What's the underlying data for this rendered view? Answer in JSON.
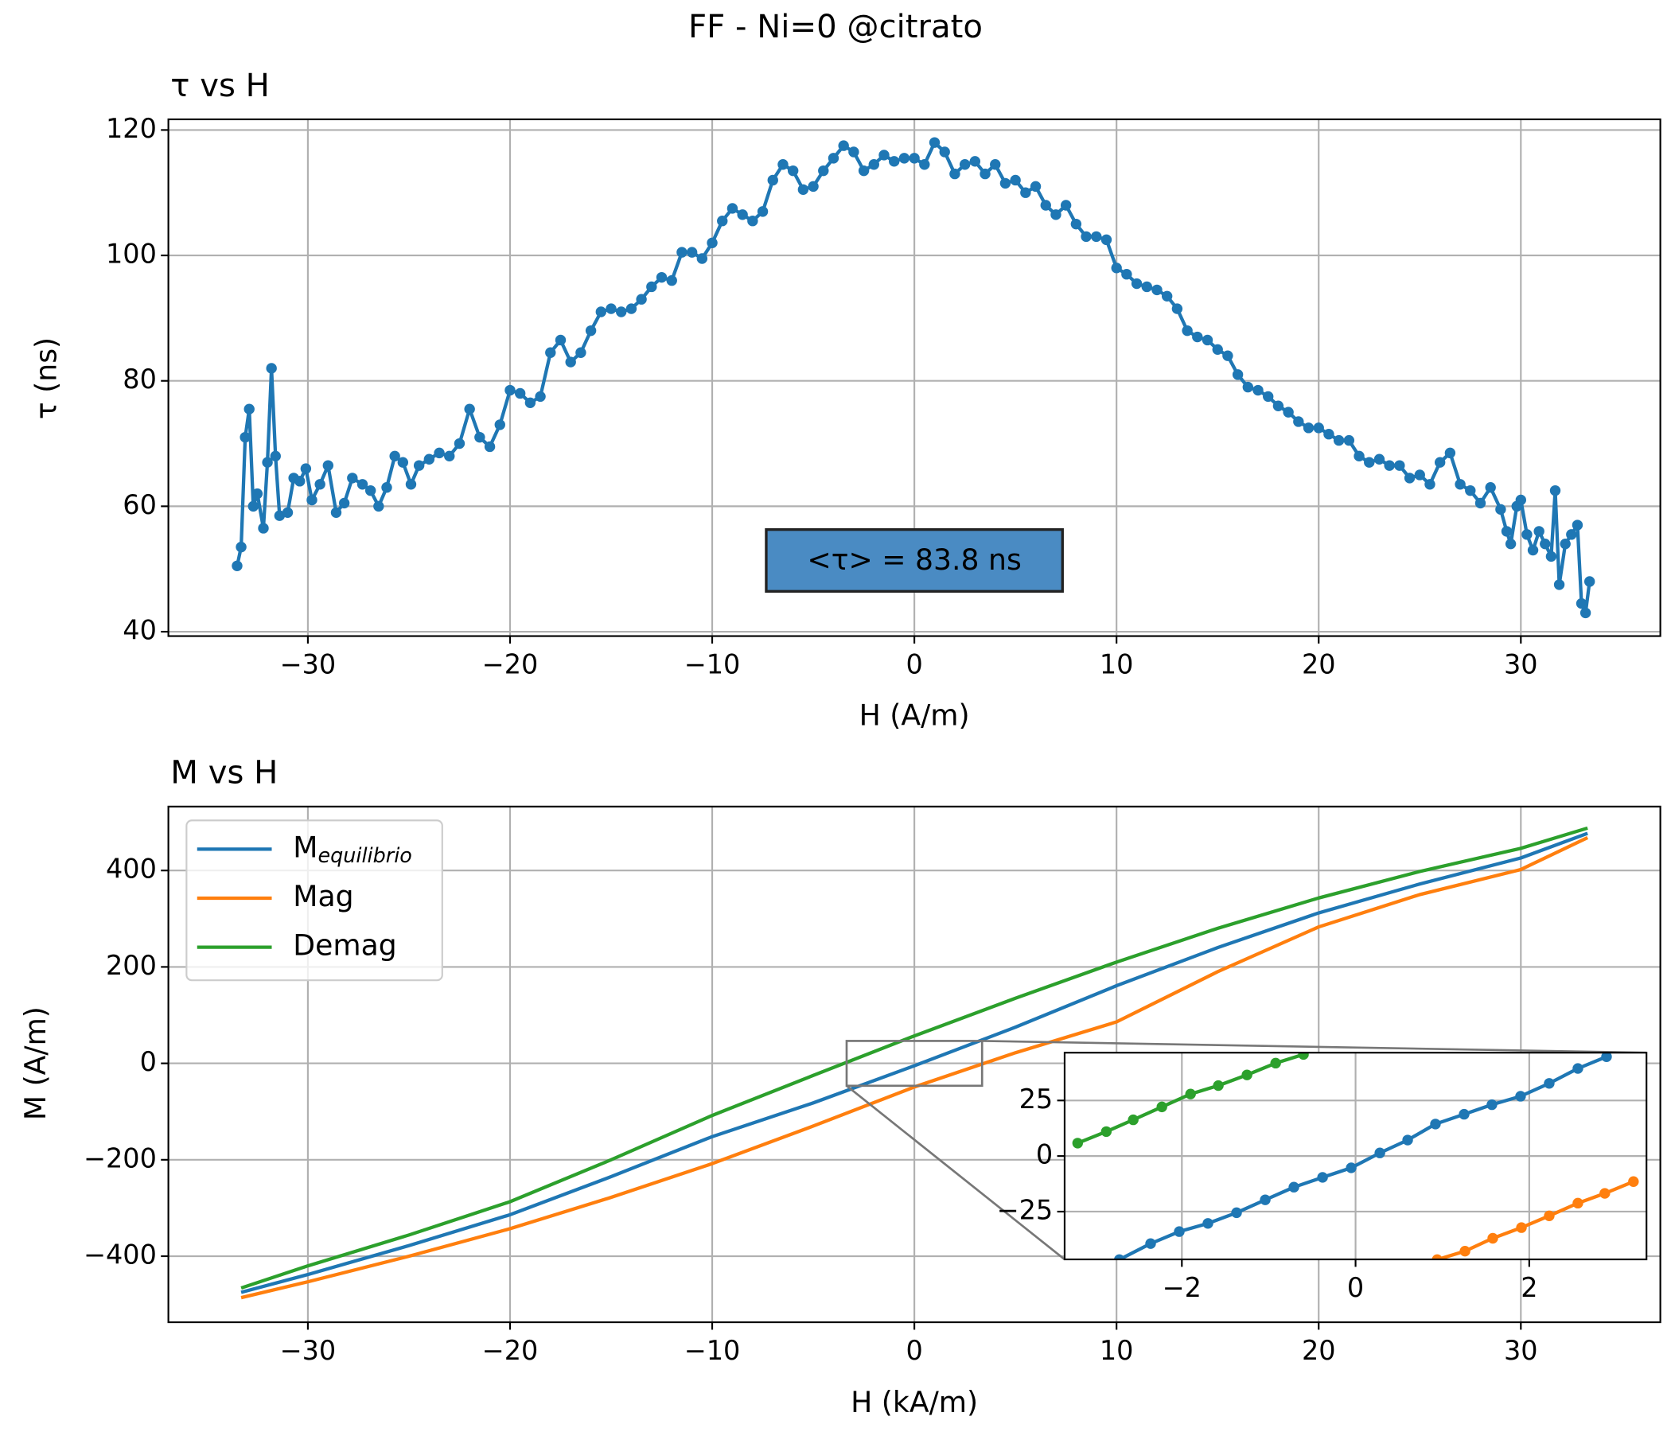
{
  "title": "FF - Ni=0 @citrato",
  "chart_data": [
    {
      "type": "line",
      "title": "τ vs H",
      "xlabel": "H (A/m)",
      "ylabel": "τ (ns)",
      "annotation": "<τ> = 83.8 ns",
      "color": "#1f77b4",
      "markers": true,
      "grid": true,
      "xlim": [
        -36.9,
        36.9
      ],
      "ylim": [
        39.3,
        121.7
      ],
      "xticks": [
        {
          "value": -30,
          "label": "−30"
        },
        {
          "value": -20,
          "label": "−20"
        },
        {
          "value": -10,
          "label": "−10"
        },
        0,
        10,
        20,
        30
      ],
      "yticks": [
        40,
        60,
        80,
        100,
        120
      ],
      "x": [
        -33.5,
        -33.3,
        -33.1,
        -32.9,
        -32.7,
        -32.5,
        -32.2,
        -32.0,
        -31.8,
        -31.6,
        -31.4,
        -31.0,
        -30.7,
        -30.4,
        -30.1,
        -29.8,
        -29.4,
        -29.0,
        -28.6,
        -28.2,
        -27.8,
        -27.3,
        -26.9,
        -26.5,
        -26.1,
        -25.7,
        -25.3,
        -24.9,
        -24.5,
        -24.0,
        -23.5,
        -23.0,
        -22.5,
        -22.0,
        -21.5,
        -21.0,
        -20.5,
        -20.0,
        -19.5,
        -19.0,
        -18.5,
        -18.0,
        -17.5,
        -17.0,
        -16.5,
        -16.0,
        -15.5,
        -15.0,
        -14.5,
        -14.0,
        -13.5,
        -13.0,
        -12.5,
        -12.0,
        -11.5,
        -11.0,
        -10.5,
        -10.0,
        -9.5,
        -9.0,
        -8.5,
        -8.0,
        -7.5,
        -7.0,
        -6.5,
        -6.0,
        -5.5,
        -5.0,
        -4.5,
        -4.0,
        -3.5,
        -3.0,
        -2.5,
        -2.0,
        -1.5,
        -1.0,
        -0.5,
        0,
        0.5,
        1.0,
        1.5,
        2.0,
        2.5,
        3.0,
        3.5,
        4.0,
        4.5,
        5.0,
        5.5,
        6.0,
        6.5,
        7.0,
        7.5,
        8.0,
        8.5,
        9.0,
        9.5,
        10.0,
        10.5,
        11.0,
        11.5,
        12.0,
        12.5,
        13.0,
        13.5,
        14.0,
        14.5,
        15.0,
        15.5,
        16.0,
        16.5,
        17.0,
        17.5,
        18.0,
        18.5,
        19.0,
        19.5,
        20.0,
        20.5,
        21.0,
        21.5,
        22.0,
        22.5,
        23.0,
        23.5,
        24.0,
        24.5,
        25.0,
        25.5,
        26.0,
        26.5,
        27.0,
        27.5,
        28.0,
        28.5,
        29.0,
        29.3,
        29.5,
        29.8,
        30.0,
        30.3,
        30.6,
        30.9,
        31.2,
        31.5,
        31.7,
        31.9,
        32.2,
        32.5,
        32.8,
        33.0,
        33.2,
        33.4
      ],
      "values": [
        50.5,
        53.5,
        71,
        75.5,
        60,
        62,
        56.5,
        67,
        82,
        68,
        58.5,
        59,
        64.5,
        64,
        66,
        61,
        63.5,
        66.5,
        59,
        60.5,
        64.5,
        63.5,
        62.5,
        60,
        63,
        68,
        67,
        63.5,
        66.5,
        67.5,
        68.5,
        68,
        70,
        75.5,
        71,
        69.5,
        73,
        78.5,
        78,
        76.5,
        77.5,
        84.5,
        86.5,
        83,
        84.5,
        88,
        91,
        91.5,
        91,
        91.5,
        93,
        95,
        96.5,
        96,
        100.5,
        100.5,
        99.5,
        102,
        105.5,
        107.5,
        106.5,
        105.5,
        107,
        112,
        114.5,
        113.5,
        110.5,
        111,
        113.5,
        115.5,
        117.5,
        116.5,
        113.5,
        114.5,
        116,
        115,
        115.5,
        115.5,
        114.5,
        118,
        116.5,
        113,
        114.5,
        115,
        113,
        114.5,
        111.5,
        112,
        110,
        111,
        108,
        106.5,
        108,
        105,
        103,
        103,
        102.5,
        98,
        97,
        95.5,
        95,
        94.5,
        93.5,
        91.5,
        88,
        87,
        86.5,
        85,
        84,
        81,
        79,
        78.5,
        77.5,
        76,
        75,
        73.5,
        72.5,
        72.5,
        71.5,
        70.5,
        70.5,
        68,
        67,
        67.5,
        66.5,
        66.5,
        64.5,
        65,
        63.5,
        67,
        68.5,
        63.5,
        62.5,
        60.5,
        63,
        59.5,
        56,
        54,
        60,
        61,
        55.5,
        53,
        56,
        54,
        52,
        62.5,
        47.5,
        54,
        55.5,
        57,
        44.5,
        43,
        48
      ]
    },
    {
      "type": "line",
      "title": "M vs H",
      "xlabel": "H (kA/m)",
      "ylabel": "M (A/m)",
      "grid": true,
      "legend": "upper left",
      "xlim": [
        -36.9,
        36.9
      ],
      "ylim": [
        -537,
        532.6
      ],
      "xticks": [
        {
          "value": -30,
          "label": "−30"
        },
        {
          "value": -20,
          "label": "−20"
        },
        {
          "value": -10,
          "label": "−10"
        },
        0,
        10,
        20,
        30
      ],
      "yticks": [
        {
          "value": -400,
          "label": "−400"
        },
        {
          "value": -200,
          "label": "−200"
        },
        0,
        200,
        400
      ],
      "x": [
        -33.3,
        -30,
        -25,
        -20,
        -15,
        -10,
        -5,
        0,
        5,
        10,
        15,
        20,
        25,
        30,
        33.3
      ],
      "series": [
        {
          "name": "M",
          "name_sub": "equilibrio",
          "color": "#1f77b4",
          "values": [
            -475,
            -438,
            -378,
            -314,
            -235,
            -152,
            -82,
            -5,
            75,
            161,
            240,
            312,
            372,
            426,
            477
          ]
        },
        {
          "name": "Mag",
          "color": "#ff7f0e",
          "values": [
            -486,
            -453,
            -400,
            -343,
            -278,
            -208,
            -130,
            -49,
            22,
            86,
            190,
            283,
            350,
            402,
            468
          ]
        },
        {
          "name": "Demag",
          "color": "#2ca02c",
          "values": [
            -466,
            -420,
            -356,
            -287,
            -200,
            -108,
            -25,
            57,
            135,
            210,
            280,
            343,
            398,
            446,
            488
          ]
        }
      ]
    },
    {
      "type": "line",
      "grid": true,
      "markers": true,
      "xlim": [
        -3.35,
        3.35
      ],
      "ylim": [
        -46.5,
        46.5
      ],
      "xticks": [
        {
          "value": -2,
          "label": "−2"
        },
        0,
        2
      ],
      "yticks": [
        {
          "value": -25,
          "label": "−25"
        },
        0,
        25
      ],
      "series": [
        {
          "color": "#1f77b4",
          "x": [
            -2.72,
            -2.36,
            -2.03,
            -1.7,
            -1.37,
            -1.04,
            -0.71,
            -0.38,
            -0.05,
            0.28,
            0.6,
            0.92,
            1.25,
            1.57,
            1.9,
            2.23,
            2.56,
            2.89
          ],
          "values": [
            -46.6,
            -39.4,
            -34,
            -30.3,
            -25.5,
            -19.7,
            -14,
            -9.6,
            -5.3,
            1.4,
            7.2,
            14.4,
            18.8,
            23.1,
            26.9,
            32.7,
            39.4,
            44.7
          ]
        },
        {
          "color": "#ff7f0e",
          "x": [
            0.94,
            1.26,
            1.58,
            1.91,
            2.23,
            2.56,
            2.87,
            3.2
          ],
          "values": [
            -46.6,
            -42.8,
            -37,
            -32.2,
            -26.9,
            -21.2,
            -16.8,
            -11.5
          ]
        },
        {
          "color": "#2ca02c",
          "x": [
            -3.2,
            -2.87,
            -2.56,
            -2.23,
            -1.9,
            -1.58,
            -1.25,
            -0.92,
            -0.6
          ],
          "values": [
            5.8,
            11,
            16.3,
            22.1,
            27.9,
            31.7,
            36.5,
            41.8,
            45.7
          ]
        }
      ]
    }
  ]
}
